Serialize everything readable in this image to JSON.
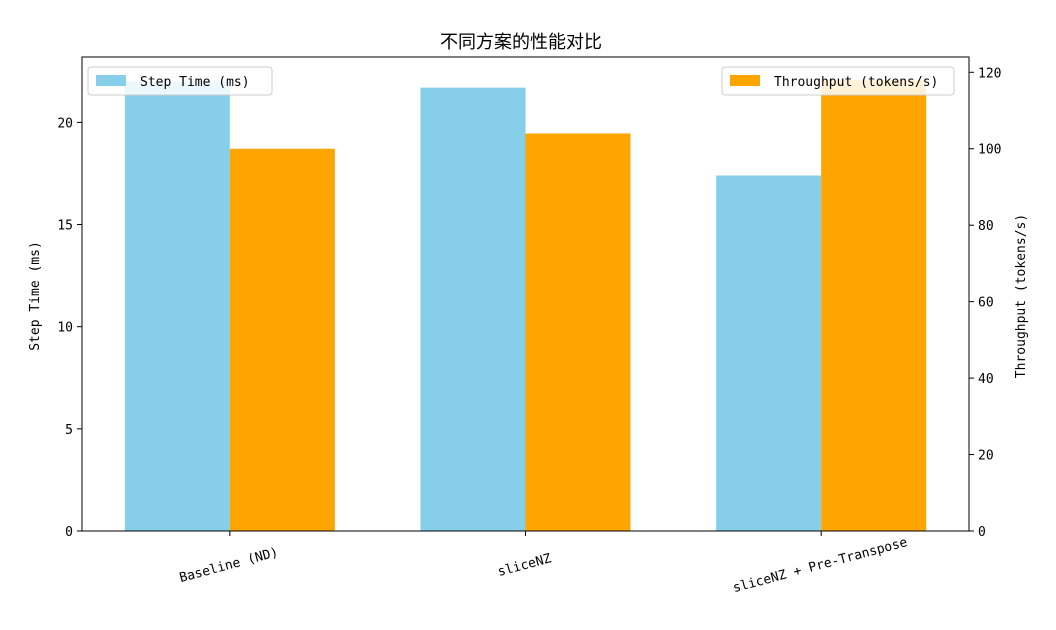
{
  "chart_data": {
    "type": "bar",
    "title": "不同方案的性能对比",
    "categories": [
      "Baseline (ND)",
      "sliceNZ",
      "sliceNZ + Pre-Transpose"
    ],
    "series": [
      {
        "name": "Step Time (ms)",
        "axis": "left",
        "color": "#87CEEB",
        "values": [
          22.0,
          21.7,
          17.4
        ]
      },
      {
        "name": "Throughput (tokens/s)",
        "axis": "right",
        "color": "#FFA500",
        "values": [
          100,
          104,
          118
        ]
      }
    ],
    "ylabel": "Step Time (ms)",
    "ylabel_right": "Throughput (tokens/s)",
    "ylim": [
      0,
      23.2
    ],
    "ylim_right": [
      0,
      124
    ],
    "yticks": [
      "0",
      "5",
      "10",
      "15",
      "20"
    ],
    "yticks_right": [
      "0",
      "20",
      "40",
      "60",
      "80",
      "100",
      "120"
    ],
    "xtick_rotation_deg": 15,
    "grid": false,
    "legend_left_placement": "top-left",
    "legend_right_placement": "top-right"
  }
}
